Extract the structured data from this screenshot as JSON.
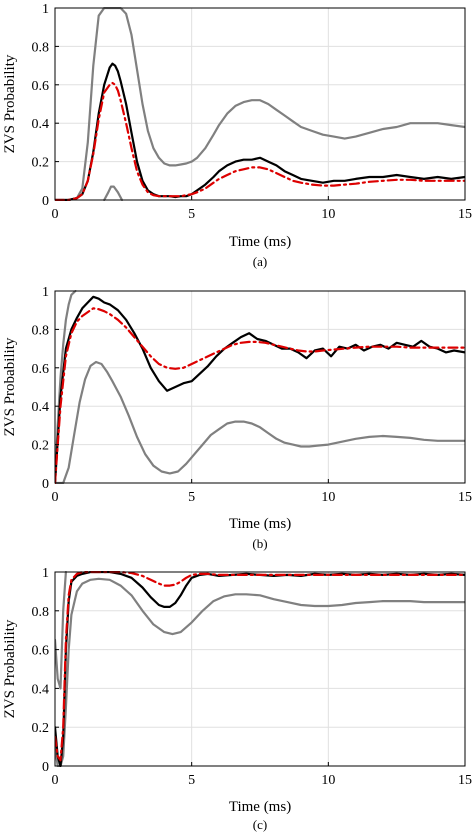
{
  "colors": {
    "grid": "#e0e0e0",
    "axis": "#000000",
    "upper_bound": "#808080",
    "lower_bound": "#808080",
    "empirical": "#000000",
    "model": "#dd0000"
  },
  "chart_data": [
    {
      "type": "line",
      "panel_label": "(a)",
      "xlabel": "Time (ms)",
      "ylabel": "ZVS Probability",
      "xlim": [
        0,
        15
      ],
      "ylim": [
        0,
        1
      ],
      "xticks": [
        0,
        5,
        10,
        15
      ],
      "yticks": [
        0,
        0.2,
        0.4,
        0.6,
        0.8,
        1
      ],
      "xtick_labels": [
        "0",
        "5",
        "10",
        "15"
      ],
      "ytick_labels": [
        "0",
        "0.2",
        "0.4",
        "0.6",
        "0.8",
        "1"
      ],
      "grid": true,
      "series": [
        {
          "role": "upper_bound",
          "style": "solid-gray",
          "x": [
            0,
            0.5,
            0.8,
            1.0,
            1.2,
            1.4,
            1.6,
            1.8,
            2.0,
            2.2,
            2.4,
            2.6,
            2.8,
            3.0,
            3.2,
            3.4,
            3.6,
            3.8,
            4.0,
            4.2,
            4.4,
            4.6,
            4.8,
            5.0,
            5.2,
            5.5,
            5.8,
            6.0,
            6.3,
            6.6,
            6.9,
            7.2,
            7.5,
            7.8,
            8.1,
            8.4,
            8.7,
            9.0,
            9.4,
            9.8,
            10.2,
            10.6,
            11.0,
            11.5,
            12.0,
            12.5,
            13.0,
            13.5,
            14.0,
            14.5,
            15.0
          ],
          "y": [
            0,
            0,
            0.01,
            0.06,
            0.3,
            0.7,
            0.96,
            1,
            1,
            1,
            1,
            0.97,
            0.86,
            0.68,
            0.5,
            0.36,
            0.27,
            0.22,
            0.19,
            0.18,
            0.18,
            0.185,
            0.19,
            0.2,
            0.22,
            0.27,
            0.34,
            0.39,
            0.45,
            0.49,
            0.51,
            0.52,
            0.52,
            0.5,
            0.47,
            0.44,
            0.41,
            0.38,
            0.36,
            0.34,
            0.33,
            0.32,
            0.33,
            0.35,
            0.37,
            0.38,
            0.4,
            0.4,
            0.4,
            0.39,
            0.38
          ]
        },
        {
          "role": "lower_bound",
          "style": "solid-gray",
          "x": [
            1.8,
            1.95,
            2.05,
            2.15,
            2.3,
            2.45
          ],
          "y": [
            0,
            0.04,
            0.07,
            0.07,
            0.04,
            0
          ]
        },
        {
          "role": "empirical",
          "style": "solid-black",
          "x": [
            0,
            0.5,
            0.8,
            1.0,
            1.2,
            1.4,
            1.6,
            1.8,
            2.0,
            2.1,
            2.2,
            2.3,
            2.4,
            2.6,
            2.8,
            3.0,
            3.2,
            3.4,
            3.6,
            3.8,
            4.0,
            4.2,
            4.4,
            4.6,
            4.8,
            5.0,
            5.2,
            5.5,
            5.8,
            6.0,
            6.3,
            6.6,
            6.9,
            7.2,
            7.5,
            7.8,
            8.1,
            8.4,
            8.7,
            9.0,
            9.4,
            9.8,
            10.2,
            10.6,
            11.0,
            11.5,
            12.0,
            12.5,
            13.0,
            13.5,
            14.0,
            14.5,
            15.0
          ],
          "y": [
            0,
            0,
            0.01,
            0.03,
            0.1,
            0.25,
            0.45,
            0.6,
            0.69,
            0.71,
            0.7,
            0.67,
            0.62,
            0.5,
            0.35,
            0.2,
            0.1,
            0.05,
            0.03,
            0.02,
            0.02,
            0.02,
            0.015,
            0.02,
            0.02,
            0.03,
            0.05,
            0.08,
            0.12,
            0.15,
            0.18,
            0.2,
            0.21,
            0.21,
            0.22,
            0.2,
            0.18,
            0.15,
            0.13,
            0.11,
            0.1,
            0.09,
            0.1,
            0.1,
            0.11,
            0.12,
            0.12,
            0.13,
            0.12,
            0.11,
            0.12,
            0.11,
            0.12
          ]
        },
        {
          "role": "model",
          "style": "dashdot-red",
          "x": [
            0,
            0.5,
            0.8,
            1.0,
            1.2,
            1.4,
            1.6,
            1.8,
            2.0,
            2.1,
            2.2,
            2.3,
            2.4,
            2.6,
            2.8,
            3.0,
            3.2,
            3.4,
            3.6,
            3.8,
            4.0,
            4.2,
            4.4,
            4.6,
            4.8,
            5.0,
            5.2,
            5.5,
            5.8,
            6.0,
            6.3,
            6.6,
            6.9,
            7.2,
            7.5,
            7.8,
            8.1,
            8.4,
            8.7,
            9.0,
            9.4,
            9.8,
            10.2,
            10.6,
            11.0,
            11.5,
            12.0,
            12.5,
            13.0,
            13.5,
            14.0,
            14.5,
            15.0
          ],
          "y": [
            0,
            0,
            0.01,
            0.03,
            0.1,
            0.24,
            0.42,
            0.56,
            0.6,
            0.61,
            0.6,
            0.57,
            0.52,
            0.4,
            0.27,
            0.15,
            0.08,
            0.04,
            0.025,
            0.02,
            0.02,
            0.02,
            0.02,
            0.02,
            0.025,
            0.03,
            0.04,
            0.06,
            0.09,
            0.11,
            0.13,
            0.15,
            0.16,
            0.17,
            0.17,
            0.16,
            0.14,
            0.12,
            0.1,
            0.09,
            0.08,
            0.075,
            0.075,
            0.08,
            0.085,
            0.095,
            0.1,
            0.105,
            0.105,
            0.1,
            0.1,
            0.1,
            0.1
          ]
        }
      ]
    },
    {
      "type": "line",
      "panel_label": "(b)",
      "xlabel": "Time (ms)",
      "ylabel": "ZVS Probability",
      "xlim": [
        0,
        15
      ],
      "ylim": [
        0,
        1
      ],
      "xticks": [
        0,
        5,
        10,
        15
      ],
      "yticks": [
        0,
        0.2,
        0.4,
        0.6,
        0.8,
        1
      ],
      "xtick_labels": [
        "0",
        "5",
        "10",
        "15"
      ],
      "ytick_labels": [
        "0",
        "0.2",
        "0.4",
        "0.6",
        "0.8",
        "1"
      ],
      "grid": true,
      "series": [
        {
          "role": "upper_bound",
          "style": "solid-gray",
          "x": [
            0,
            0.1,
            0.2,
            0.3,
            0.4,
            0.5,
            0.6,
            0.75
          ],
          "y": [
            0,
            0.3,
            0.55,
            0.72,
            0.85,
            0.93,
            0.98,
            1
          ]
        },
        {
          "role": "lower_bound",
          "style": "solid-gray",
          "x": [
            0,
            0.3,
            0.5,
            0.7,
            0.9,
            1.1,
            1.3,
            1.5,
            1.7,
            1.9,
            2.1,
            2.4,
            2.7,
            3.0,
            3.3,
            3.6,
            3.9,
            4.2,
            4.5,
            4.8,
            5.1,
            5.4,
            5.7,
            6.0,
            6.3,
            6.6,
            6.9,
            7.2,
            7.5,
            7.8,
            8.1,
            8.4,
            8.7,
            9.0,
            9.3,
            9.6,
            10.0,
            10.5,
            11.0,
            11.5,
            12.0,
            12.5,
            13.0,
            13.5,
            14.0,
            14.5,
            15.0
          ],
          "y": [
            0,
            0,
            0.08,
            0.25,
            0.42,
            0.54,
            0.61,
            0.63,
            0.62,
            0.58,
            0.53,
            0.45,
            0.35,
            0.24,
            0.15,
            0.09,
            0.06,
            0.05,
            0.06,
            0.1,
            0.15,
            0.2,
            0.25,
            0.28,
            0.31,
            0.32,
            0.32,
            0.31,
            0.29,
            0.26,
            0.23,
            0.21,
            0.2,
            0.19,
            0.19,
            0.195,
            0.2,
            0.215,
            0.23,
            0.24,
            0.245,
            0.24,
            0.235,
            0.225,
            0.22,
            0.22,
            0.22
          ]
        },
        {
          "role": "empirical",
          "style": "solid-black",
          "x": [
            0,
            0.2,
            0.4,
            0.6,
            0.8,
            1.0,
            1.2,
            1.4,
            1.6,
            1.8,
            2.0,
            2.3,
            2.6,
            2.9,
            3.2,
            3.5,
            3.8,
            4.1,
            4.4,
            4.7,
            5.0,
            5.3,
            5.6,
            5.9,
            6.2,
            6.5,
            6.8,
            7.1,
            7.4,
            7.7,
            8.0,
            8.3,
            8.6,
            8.9,
            9.2,
            9.5,
            9.8,
            10.1,
            10.4,
            10.7,
            11.0,
            11.3,
            11.6,
            11.9,
            12.2,
            12.5,
            12.8,
            13.1,
            13.4,
            13.7,
            14.0,
            14.3,
            14.6,
            15.0
          ],
          "y": [
            0,
            0.45,
            0.7,
            0.8,
            0.86,
            0.91,
            0.94,
            0.97,
            0.96,
            0.94,
            0.93,
            0.9,
            0.85,
            0.78,
            0.7,
            0.6,
            0.53,
            0.48,
            0.5,
            0.52,
            0.53,
            0.57,
            0.61,
            0.66,
            0.7,
            0.73,
            0.76,
            0.78,
            0.75,
            0.74,
            0.72,
            0.7,
            0.7,
            0.68,
            0.65,
            0.69,
            0.7,
            0.66,
            0.71,
            0.7,
            0.72,
            0.69,
            0.71,
            0.72,
            0.7,
            0.73,
            0.72,
            0.71,
            0.74,
            0.71,
            0.7,
            0.68,
            0.69,
            0.68
          ]
        },
        {
          "role": "model",
          "style": "dashdot-red",
          "x": [
            0,
            0.2,
            0.4,
            0.6,
            0.8,
            1.0,
            1.2,
            1.4,
            1.6,
            1.8,
            2.0,
            2.3,
            2.6,
            2.9,
            3.2,
            3.5,
            3.8,
            4.1,
            4.4,
            4.7,
            5.0,
            5.3,
            5.6,
            5.9,
            6.2,
            6.5,
            6.8,
            7.1,
            7.4,
            7.7,
            8.0,
            8.3,
            8.6,
            8.9,
            9.2,
            9.5,
            9.8,
            10.2,
            10.6,
            11.0,
            11.5,
            12.0,
            12.5,
            13.0,
            13.5,
            14.0,
            14.5,
            15.0
          ],
          "y": [
            0,
            0.4,
            0.66,
            0.78,
            0.84,
            0.87,
            0.89,
            0.91,
            0.905,
            0.895,
            0.88,
            0.85,
            0.81,
            0.76,
            0.71,
            0.66,
            0.62,
            0.6,
            0.595,
            0.6,
            0.62,
            0.64,
            0.66,
            0.68,
            0.7,
            0.72,
            0.73,
            0.735,
            0.735,
            0.73,
            0.72,
            0.71,
            0.7,
            0.69,
            0.685,
            0.685,
            0.69,
            0.695,
            0.7,
            0.705,
            0.71,
            0.71,
            0.71,
            0.705,
            0.705,
            0.705,
            0.705,
            0.705
          ]
        }
      ]
    },
    {
      "type": "line",
      "panel_label": "(c)",
      "xlabel": "Time (ms)",
      "ylabel": "ZVS Probability",
      "xlim": [
        0,
        15
      ],
      "ylim": [
        0,
        1
      ],
      "xticks": [
        0,
        5,
        10,
        15
      ],
      "yticks": [
        0,
        0.2,
        0.4,
        0.6,
        0.8,
        1
      ],
      "xtick_labels": [
        "0",
        "5",
        "10",
        "15"
      ],
      "ytick_labels": [
        "0",
        "0.2",
        "0.4",
        "0.6",
        "0.8",
        "1"
      ],
      "grid": true,
      "series": [
        {
          "role": "upper_bound",
          "style": "solid-gray",
          "x": [
            0,
            0.1,
            0.2,
            0.3,
            0.4
          ],
          "y": [
            0.65,
            0.45,
            0.4,
            0.8,
            1
          ]
        },
        {
          "role": "lower_bound",
          "style": "solid-gray",
          "x": [
            0,
            0.1,
            0.2,
            0.3,
            0.4,
            0.5,
            0.6,
            0.8,
            1.0,
            1.3,
            1.6,
            2.0,
            2.4,
            2.8,
            3.2,
            3.6,
            4.0,
            4.3,
            4.6,
            5.0,
            5.4,
            5.8,
            6.2,
            6.6,
            7.0,
            7.5,
            8.0,
            8.5,
            9.0,
            9.5,
            10.0,
            10.5,
            11.0,
            11.5,
            12.0,
            12.5,
            13.0,
            13.5,
            14.0,
            14.5,
            15.0
          ],
          "y": [
            0.1,
            0,
            0,
            0.05,
            0.3,
            0.6,
            0.78,
            0.9,
            0.94,
            0.96,
            0.965,
            0.96,
            0.93,
            0.88,
            0.8,
            0.73,
            0.69,
            0.68,
            0.69,
            0.74,
            0.8,
            0.85,
            0.875,
            0.885,
            0.885,
            0.88,
            0.86,
            0.845,
            0.83,
            0.825,
            0.825,
            0.83,
            0.84,
            0.845,
            0.85,
            0.85,
            0.85,
            0.845,
            0.845,
            0.845,
            0.845
          ]
        },
        {
          "role": "empirical",
          "style": "solid-black",
          "x": [
            0,
            0.1,
            0.2,
            0.3,
            0.4,
            0.5,
            0.6,
            0.8,
            1.0,
            1.3,
            1.6,
            2.0,
            2.4,
            2.8,
            3.2,
            3.5,
            3.8,
            4.0,
            4.2,
            4.4,
            4.6,
            4.8,
            5.0,
            5.3,
            5.6,
            6.0,
            6.5,
            7.0,
            7.5,
            8.0,
            8.5,
            9.0,
            9.5,
            10.0,
            10.5,
            11.0,
            11.5,
            12.0,
            12.5,
            13.0,
            13.5,
            14.0,
            14.5,
            15.0
          ],
          "y": [
            0.2,
            0.05,
            0,
            0.15,
            0.6,
            0.85,
            0.95,
            0.98,
            0.99,
            1,
            1,
            1,
            0.99,
            0.97,
            0.92,
            0.87,
            0.83,
            0.82,
            0.82,
            0.84,
            0.88,
            0.93,
            0.97,
            0.985,
            0.99,
            0.98,
            0.985,
            0.99,
            0.985,
            0.98,
            0.985,
            0.98,
            0.99,
            0.985,
            0.99,
            0.985,
            0.99,
            0.985,
            0.99,
            0.985,
            0.99,
            0.985,
            0.99,
            0.985
          ]
        },
        {
          "role": "model",
          "style": "dashdot-red",
          "x": [
            0,
            0.1,
            0.2,
            0.3,
            0.4,
            0.5,
            0.6,
            0.8,
            1.0,
            1.3,
            1.6,
            2.0,
            2.4,
            2.8,
            3.2,
            3.5,
            3.8,
            4.0,
            4.2,
            4.4,
            4.6,
            4.8,
            5.0,
            5.3,
            5.6,
            6.0,
            6.5,
            7.0,
            7.5,
            8.0,
            8.5,
            9.0,
            9.5,
            10.0,
            10.5,
            11.0,
            11.5,
            12.0,
            12.5,
            13.0,
            13.5,
            14.0,
            14.5,
            15.0
          ],
          "y": [
            0.15,
            0.05,
            0.03,
            0.2,
            0.65,
            0.88,
            0.96,
            0.99,
            1,
            1,
            1,
            1,
            1,
            0.995,
            0.98,
            0.96,
            0.94,
            0.93,
            0.93,
            0.935,
            0.95,
            0.97,
            0.985,
            0.99,
            0.99,
            0.985,
            0.985,
            0.985,
            0.985,
            0.985,
            0.985,
            0.985,
            0.985,
            0.985,
            0.985,
            0.985,
            0.985,
            0.985,
            0.985,
            0.985,
            0.985,
            0.985,
            0.985,
            0.985
          ]
        }
      ]
    }
  ]
}
